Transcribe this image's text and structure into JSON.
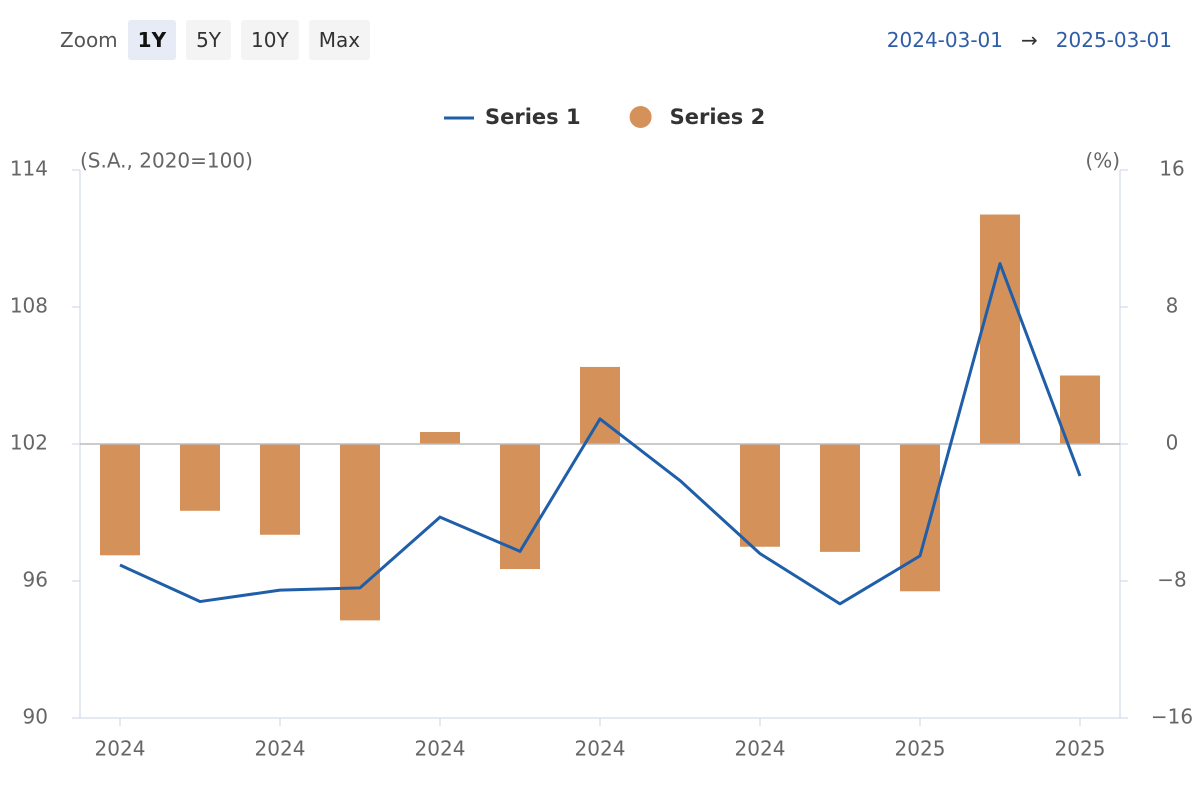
{
  "ui": {
    "zoom_label": "Zoom",
    "zoom_options": [
      "1Y",
      "5Y",
      "10Y",
      "Max"
    ],
    "active_zoom": 0,
    "range_start": "2024-03-01",
    "range_arrow": "→",
    "range_end": "2025-03-01"
  },
  "chart_data": {
    "type": "bar-line",
    "y_axis_label": "(S.A., 2020=100)",
    "y2_axis_label": "(%)",
    "categories": [
      "2024",
      null,
      "2024",
      null,
      "2024",
      null,
      "2024",
      null,
      "2024",
      null,
      "2025",
      null,
      "2025"
    ],
    "series": [
      {
        "name": "Series 1",
        "type": "line",
        "color": "#1f5ea8",
        "axis": "y",
        "values": [
          96.7,
          95.1,
          95.6,
          95.7,
          98.8,
          97.3,
          103.1,
          100.4,
          97.2,
          95.0,
          97.1,
          109.9,
          100.6
        ]
      },
      {
        "name": "Series 2",
        "type": "bar",
        "color": "#d4925a",
        "axis": "y2",
        "values": [
          -6.5,
          -3.9,
          -5.3,
          -10.3,
          0.7,
          -7.3,
          4.5,
          null,
          -6.0,
          -6.3,
          -8.6,
          13.4,
          4.0
        ]
      }
    ],
    "ylim": [
      90,
      114
    ],
    "yticks": [
      90,
      96,
      102,
      108,
      114
    ],
    "y2lim": [
      -16,
      16
    ],
    "y2ticks": [
      {
        "value": -16,
        "label": "−16"
      },
      {
        "value": -8,
        "label": "−8"
      },
      0,
      8,
      16
    ],
    "zero_line": true
  }
}
